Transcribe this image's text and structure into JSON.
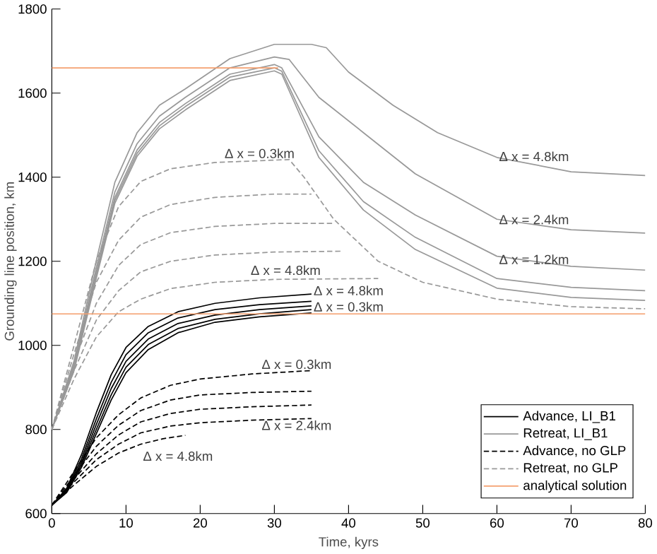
{
  "chart_data": {
    "type": "line",
    "xlabel": "Time, kyrs",
    "ylabel": "Grounding line position, km",
    "xlim": [
      0,
      80
    ],
    "ylim": [
      600,
      1800
    ],
    "xticks": [
      0,
      10,
      20,
      30,
      40,
      50,
      60,
      70,
      80
    ],
    "yticks": [
      600,
      800,
      1000,
      1200,
      1400,
      1600,
      1800
    ],
    "legend": "bottom right",
    "grid": false,
    "series": [
      {
        "name": "Advance, LI_B1",
        "color": "#000000",
        "line_style": "solid",
        "x": [
          0,
          2,
          4,
          6,
          8,
          10,
          13,
          17,
          22,
          28,
          35
        ],
        "values": [
          620,
          660,
          740,
          840,
          930,
          995,
          1045,
          1080,
          1100,
          1113,
          1122
        ]
      },
      {
        "color": "#000000",
        "line_style": "solid",
        "x": [
          0,
          2,
          4,
          6,
          8,
          10,
          13,
          17,
          22,
          28,
          35
        ],
        "values": [
          620,
          657,
          730,
          825,
          912,
          978,
          1030,
          1065,
          1085,
          1097,
          1105
        ]
      },
      {
        "color": "#000000",
        "line_style": "solid",
        "x": [
          0,
          2,
          4,
          6,
          8,
          10,
          13,
          17,
          22,
          28,
          35
        ],
        "values": [
          620,
          655,
          722,
          812,
          897,
          962,
          1015,
          1052,
          1072,
          1085,
          1094
        ]
      },
      {
        "color": "#000000",
        "line_style": "solid",
        "x": [
          0,
          2,
          4,
          6,
          8,
          10,
          13,
          17,
          22,
          28,
          35
        ],
        "values": [
          620,
          652,
          716,
          800,
          882,
          948,
          1002,
          1040,
          1062,
          1075,
          1085
        ]
      },
      {
        "color": "#000000",
        "line_style": "solid",
        "x": [
          0,
          2,
          4,
          6,
          8,
          10,
          13,
          17,
          22,
          28,
          35
        ],
        "values": [
          620,
          650,
          710,
          790,
          870,
          935,
          990,
          1030,
          1055,
          1068,
          1077
        ]
      },
      {
        "name": "Retreat, LI_B1",
        "color": "#999999",
        "line_style": "solid",
        "x": [
          0,
          3,
          6,
          8.5,
          11.5,
          14.5,
          18,
          24,
          30,
          35,
          37,
          40,
          46,
          52,
          60,
          70,
          80
        ],
        "values": [
          800,
          963,
          1202,
          1388,
          1506,
          1571,
          1610,
          1682,
          1716,
          1716,
          1708,
          1650,
          1571,
          1506,
          1447,
          1413,
          1404
        ]
      },
      {
        "color": "#999999",
        "line_style": "solid",
        "x": [
          0,
          3,
          6,
          8.5,
          11.5,
          14.5,
          18,
          24,
          30,
          32,
          36,
          42,
          49,
          60,
          70,
          80
        ],
        "values": [
          800,
          955,
          1185,
          1365,
          1480,
          1545,
          1590,
          1660,
          1686,
          1680,
          1590,
          1506,
          1408,
          1300,
          1275,
          1267
        ]
      },
      {
        "color": "#999999",
        "line_style": "solid",
        "x": [
          0,
          3,
          6,
          8.5,
          11.5,
          14.5,
          18,
          24,
          30,
          31,
          36,
          42,
          49,
          60,
          70,
          80
        ],
        "values": [
          800,
          950,
          1175,
          1352,
          1465,
          1530,
          1575,
          1645,
          1668,
          1660,
          1496,
          1388,
          1310,
          1212,
          1188,
          1179
        ]
      },
      {
        "color": "#999999",
        "line_style": "solid",
        "x": [
          0,
          3,
          6,
          8.5,
          11.5,
          14.5,
          18,
          24,
          30,
          31,
          36,
          42,
          49,
          60,
          70,
          80
        ],
        "values": [
          800,
          945,
          1168,
          1345,
          1457,
          1522,
          1568,
          1638,
          1660,
          1652,
          1463,
          1342,
          1257,
          1159,
          1138,
          1130
        ]
      },
      {
        "color": "#999999",
        "line_style": "solid",
        "x": [
          0,
          3,
          6,
          8.5,
          11.5,
          14.5,
          18,
          24,
          30,
          31,
          36,
          42,
          49,
          60,
          70,
          80
        ],
        "values": [
          800,
          940,
          1160,
          1338,
          1450,
          1515,
          1560,
          1630,
          1653,
          1645,
          1447,
          1322,
          1228,
          1136,
          1114,
          1107
        ]
      },
      {
        "name": "Advance, no GLP",
        "color": "#000000",
        "line_style": "dashed",
        "x": [
          0,
          3,
          6,
          9,
          12,
          16,
          20,
          27,
          35
        ],
        "values": [
          620,
          700,
          780,
          835,
          875,
          905,
          920,
          932,
          940
        ]
      },
      {
        "color": "#000000",
        "line_style": "dashed",
        "x": [
          0,
          3,
          6,
          9,
          12,
          16,
          20,
          27,
          35
        ],
        "values": [
          620,
          690,
          760,
          810,
          845,
          870,
          882,
          888,
          891
        ]
      },
      {
        "color": "#000000",
        "line_style": "dashed",
        "x": [
          0,
          3,
          6,
          9,
          12,
          16,
          20,
          27,
          35
        ],
        "values": [
          620,
          682,
          742,
          787,
          818,
          838,
          848,
          854,
          858
        ]
      },
      {
        "color": "#000000",
        "line_style": "dashed",
        "x": [
          0,
          3,
          6,
          9,
          12,
          16,
          20,
          27,
          35
        ],
        "values": [
          620,
          675,
          728,
          765,
          792,
          808,
          816,
          822,
          826
        ]
      },
      {
        "color": "#000000",
        "line_style": "dashed",
        "x": [
          0,
          3,
          6,
          9,
          12,
          15,
          18
        ],
        "values": [
          620,
          668,
          712,
          744,
          765,
          778,
          786
        ]
      },
      {
        "name": "Retreat, no GLP",
        "color": "#999999",
        "line_style": "dashed",
        "x": [
          0,
          3,
          6,
          9,
          12,
          16,
          22,
          32,
          34,
          38,
          44,
          50,
          60,
          70,
          80
        ],
        "values": [
          800,
          1000,
          1200,
          1330,
          1390,
          1420,
          1435,
          1442,
          1400,
          1300,
          1200,
          1150,
          1110,
          1092,
          1087
        ]
      },
      {
        "color": "#999999",
        "line_style": "dashed",
        "x": [
          0,
          3,
          6,
          9,
          12,
          16,
          22,
          30,
          35
        ],
        "values": [
          800,
          980,
          1150,
          1250,
          1305,
          1335,
          1352,
          1360,
          1360
        ]
      },
      {
        "color": "#999999",
        "line_style": "dashed",
        "x": [
          0,
          3,
          6,
          9,
          12,
          16,
          22,
          30,
          38
        ],
        "values": [
          800,
          960,
          1100,
          1190,
          1240,
          1268,
          1283,
          1290,
          1290
        ]
      },
      {
        "color": "#999999",
        "line_style": "dashed",
        "x": [
          0,
          3,
          6,
          9,
          12,
          16,
          22,
          30,
          39
        ],
        "values": [
          800,
          940,
          1060,
          1130,
          1175,
          1200,
          1215,
          1222,
          1224
        ]
      },
      {
        "color": "#999999",
        "line_style": "dashed",
        "x": [
          0,
          3,
          6,
          9,
          12,
          16,
          22,
          30,
          44
        ],
        "values": [
          800,
          920,
          1020,
          1080,
          1110,
          1135,
          1150,
          1157,
          1159
        ]
      },
      {
        "name": "analytical solution",
        "color": "#f4a070",
        "line_style": "solid",
        "x": [
          0,
          80
        ],
        "values": [
          1075,
          1075
        ]
      },
      {
        "color": "#f4a070",
        "line_style": "solid",
        "x": [
          0,
          30.5
        ],
        "values": [
          1660,
          1660
        ]
      }
    ],
    "annotations": [
      "Δ x = 0.3km",
      "Δ x = 4.8km",
      "Δ x = 4.8km",
      "Δ x = 0.3km",
      "Δ x = 0.3km",
      "Δ x = 2.4km",
      "Δ x = 4.8km",
      "Δ x = 4.8km",
      "Δ x = 2.4km",
      "Δ x = 1.2km"
    ]
  }
}
